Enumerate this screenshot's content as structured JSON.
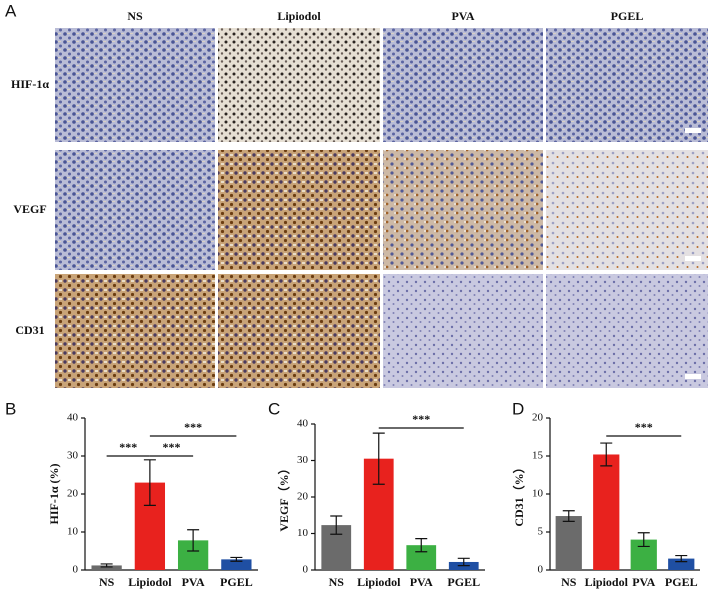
{
  "panel_labels": [
    "A",
    "B",
    "C",
    "D"
  ],
  "image_grid": {
    "columns": [
      "NS",
      "Lipiodol",
      "PVA",
      "PGEL"
    ],
    "rows": [
      "HIF-1α",
      "VEGF",
      "CD31"
    ]
  },
  "chart_data": [
    {
      "type": "bar",
      "y_label": "HIF-1α (%)",
      "categories": [
        "NS",
        "Lipiodol",
        "PVA",
        "PGEL"
      ],
      "values": [
        1.2,
        23,
        7.8,
        2.8
      ],
      "errors": [
        0.4,
        6,
        2.8,
        0.5
      ],
      "colors": [
        "#6b6b6b",
        "#e8221e",
        "#3cb043",
        "#1f4fa3"
      ],
      "ylim": [
        0,
        40
      ],
      "yticks": [
        0,
        10,
        20,
        30,
        40
      ],
      "significance": [
        {
          "between": [
            "NS",
            "Lipiodol"
          ],
          "label": "***"
        },
        {
          "between": [
            "Lipiodol",
            "PVA"
          ],
          "label": "***"
        },
        {
          "between": [
            "Lipiodol",
            "PGEL"
          ],
          "label": "***"
        }
      ]
    },
    {
      "type": "bar",
      "y_label": "VEGF（%）",
      "categories": [
        "NS",
        "Lipiodol",
        "PVA",
        "PGEL"
      ],
      "values": [
        12.3,
        30.5,
        6.8,
        2.2
      ],
      "errors": [
        2.5,
        7,
        1.8,
        1
      ],
      "colors": [
        "#6b6b6b",
        "#e8221e",
        "#3cb043",
        "#1f4fa3"
      ],
      "ylim": [
        0,
        40
      ],
      "yticks": [
        0,
        10,
        20,
        30,
        40
      ],
      "significance": [
        {
          "between": [
            "Lipiodol",
            "PGEL"
          ],
          "label": "***"
        }
      ]
    },
    {
      "type": "bar",
      "y_label": "CD31（%）",
      "categories": [
        "NS",
        "Lipiodol",
        "PVA",
        "PGEL"
      ],
      "values": [
        7.1,
        15.2,
        4.0,
        1.5
      ],
      "errors": [
        0.7,
        1.5,
        0.9,
        0.4
      ],
      "colors": [
        "#6b6b6b",
        "#e8221e",
        "#3cb043",
        "#1f4fa3"
      ],
      "ylim": [
        0,
        20
      ],
      "yticks": [
        0,
        5,
        10,
        15,
        20
      ],
      "significance": [
        {
          "between": [
            "Lipiodol",
            "PGEL"
          ],
          "label": "***"
        }
      ]
    }
  ]
}
